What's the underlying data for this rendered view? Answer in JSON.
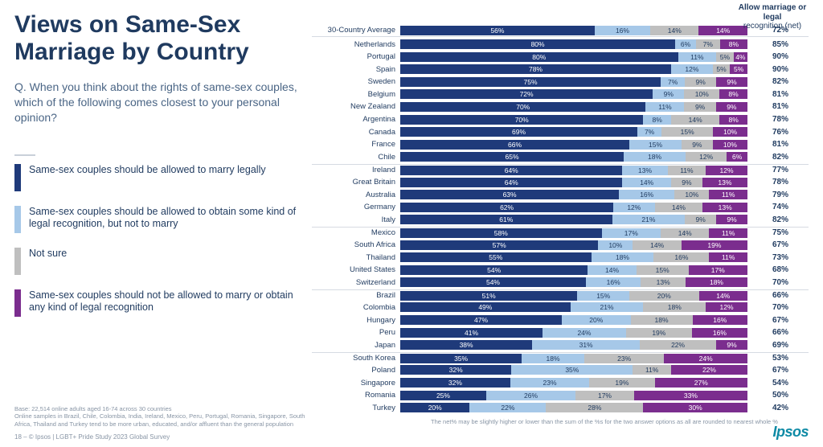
{
  "title": "Views on Same-Sex Marriage by Country",
  "question": "Q. When you think about the rights of same-sex couples, which of the following comes closest to your personal opinion?",
  "net_header_l1": "Allow marriage or legal",
  "net_header_l2": "recognition (net)",
  "colors": {
    "allow_marry": "#1f3a7a",
    "allow_recognition": "#a6c8e8",
    "not_sure": "#bfbfbf",
    "not_allow": "#7b2d8e",
    "text_main": "#1f3a5f",
    "text_muted": "#8895a5",
    "divider": "#d6dbe2"
  },
  "legend": [
    {
      "color_key": "allow_marry",
      "label": "Same-sex couples should be allowed to marry legally"
    },
    {
      "color_key": "allow_recognition",
      "label": "Same-sex couples should be allowed to obtain some kind of legal recognition, but not to marry"
    },
    {
      "color_key": "not_sure",
      "label": "Not sure"
    },
    {
      "color_key": "not_allow",
      "label": "Same-sex couples should not be allowed to marry or obtain any kind of legal recognition"
    }
  ],
  "rows": [
    {
      "label": "30-Country Average",
      "v": [
        56,
        16,
        14,
        14
      ],
      "net": "72%",
      "first": true
    },
    {
      "label": "Netherlands",
      "v": [
        80,
        6,
        7,
        8
      ],
      "net": "85%"
    },
    {
      "label": "Portugal",
      "v": [
        80,
        11,
        5,
        4
      ],
      "net": "90%"
    },
    {
      "label": "Spain",
      "v": [
        78,
        12,
        5,
        5
      ],
      "net": "90%"
    },
    {
      "label": "Sweden",
      "v": [
        75,
        7,
        9,
        9
      ],
      "net": "82%"
    },
    {
      "label": "Belgium",
      "v": [
        72,
        9,
        10,
        8
      ],
      "net": "81%"
    },
    {
      "label": "New Zealand",
      "v": [
        70,
        11,
        9,
        9
      ],
      "net": "81%"
    },
    {
      "label": "Argentina",
      "v": [
        70,
        8,
        14,
        8
      ],
      "net": "78%"
    },
    {
      "label": "Canada",
      "v": [
        69,
        7,
        15,
        10
      ],
      "net": "76%"
    },
    {
      "label": "France",
      "v": [
        66,
        15,
        9,
        10
      ],
      "net": "81%"
    },
    {
      "label": "Chile",
      "v": [
        65,
        18,
        12,
        6
      ],
      "net": "82%"
    },
    {
      "label": "Ireland",
      "v": [
        64,
        13,
        11,
        12
      ],
      "net": "77%",
      "group_start": true
    },
    {
      "label": "Great Britain",
      "v": [
        64,
        14,
        9,
        13
      ],
      "net": "78%"
    },
    {
      "label": "Australia",
      "v": [
        63,
        16,
        10,
        11
      ],
      "net": "79%"
    },
    {
      "label": "Germany",
      "v": [
        62,
        12,
        14,
        13
      ],
      "net": "74%"
    },
    {
      "label": "Italy",
      "v": [
        61,
        21,
        9,
        9
      ],
      "net": "82%"
    },
    {
      "label": "Mexico",
      "v": [
        58,
        17,
        14,
        11
      ],
      "net": "75%",
      "group_start": true
    },
    {
      "label": "South Africa",
      "v": [
        57,
        10,
        14,
        19
      ],
      "net": "67%"
    },
    {
      "label": "Thailand",
      "v": [
        55,
        18,
        16,
        11
      ],
      "net": "73%"
    },
    {
      "label": "United States",
      "v": [
        54,
        14,
        15,
        17
      ],
      "net": "68%"
    },
    {
      "label": "Switzerland",
      "v": [
        54,
        16,
        13,
        18
      ],
      "net": "70%"
    },
    {
      "label": "Brazil",
      "v": [
        51,
        15,
        20,
        14
      ],
      "net": "66%",
      "group_start": true
    },
    {
      "label": "Colombia",
      "v": [
        49,
        21,
        18,
        12
      ],
      "net": "70%"
    },
    {
      "label": "Hungary",
      "v": [
        47,
        20,
        18,
        16
      ],
      "net": "67%"
    },
    {
      "label": "Peru",
      "v": [
        41,
        24,
        19,
        16
      ],
      "net": "66%"
    },
    {
      "label": "Japan",
      "v": [
        38,
        31,
        22,
        9
      ],
      "net": "69%"
    },
    {
      "label": "South Korea",
      "v": [
        35,
        18,
        23,
        24
      ],
      "net": "53%",
      "group_start": true
    },
    {
      "label": "Poland",
      "v": [
        32,
        35,
        11,
        22
      ],
      "net": "67%"
    },
    {
      "label": "Singapore",
      "v": [
        32,
        23,
        19,
        27
      ],
      "net": "54%"
    },
    {
      "label": "Romania",
      "v": [
        25,
        26,
        17,
        33
      ],
      "net": "50%"
    },
    {
      "label": "Turkey",
      "v": [
        20,
        22,
        28,
        30
      ],
      "net": "42%"
    }
  ],
  "chart_footnote": "The net% may be slightly higher or lower than the sum of the %s for the two answer options as all are rounded to nearest whole %",
  "footnote_left_l1": "Base: 22,514 online adults aged 16-74 across 30 countries",
  "footnote_left_l2": "Online samples in Brazil, Chile, Colombia, India, Ireland, Mexico, Peru, Portugal, Romania, Singapore, South Africa, Thailand and Turkey tend to be more urban, educated, and/or affluent than the general population",
  "footnote_bottom": "18 –    © Ipsos | LGBT+ Pride Study 2023 Global Survey",
  "logo": "Ipsos"
}
